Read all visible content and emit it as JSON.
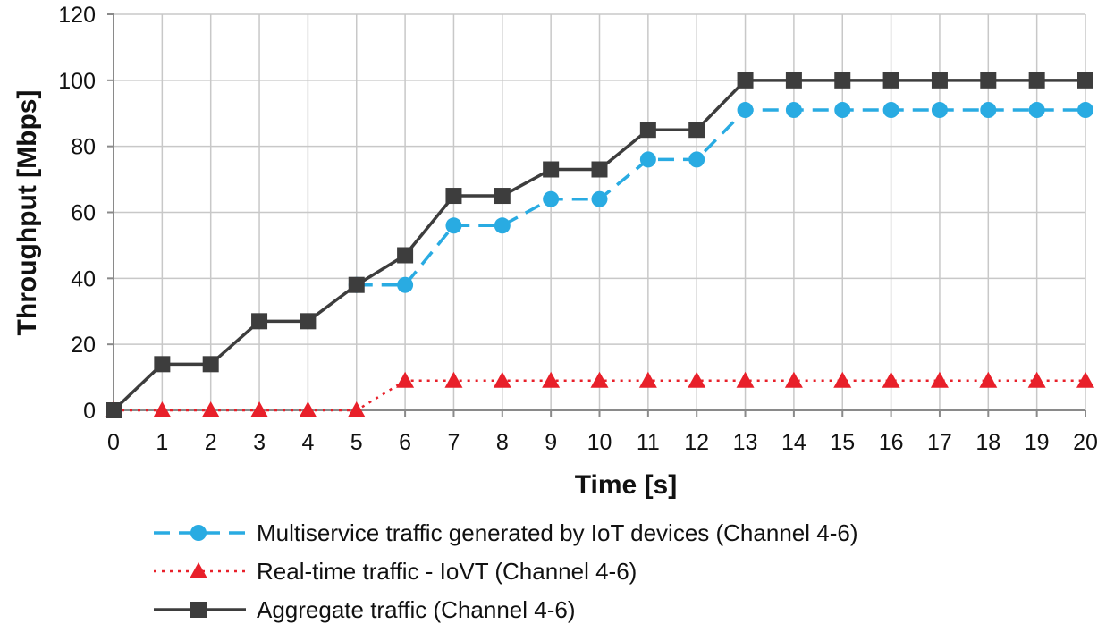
{
  "chart_data": {
    "type": "line",
    "title": "",
    "xlabel": "Time [s]",
    "ylabel": "Throughput [Mbps]",
    "x": [
      0,
      1,
      2,
      3,
      4,
      5,
      6,
      7,
      8,
      9,
      10,
      11,
      12,
      13,
      14,
      15,
      16,
      17,
      18,
      19,
      20
    ],
    "xlim": [
      0,
      20
    ],
    "ylim": [
      0,
      120
    ],
    "yticks": [
      0,
      20,
      40,
      60,
      80,
      100,
      120
    ],
    "grid": true,
    "legend_position": "bottom",
    "series": [
      {
        "name": "Multiservice traffic generated by IoT devices (Channel 4-6)",
        "color": "#29abe2",
        "line_style": "dashed",
        "marker": "circle",
        "x": [
          5,
          6,
          7,
          8,
          9,
          10,
          11,
          12,
          13,
          14,
          15,
          16,
          17,
          18,
          19,
          20
        ],
        "values": [
          38,
          38,
          56,
          56,
          64,
          64,
          76,
          76,
          91,
          91,
          91,
          91,
          91,
          91,
          91,
          91
        ]
      },
      {
        "name": "Real-time traffic - IoVT (Channel 4-6)",
        "color": "#e8202a",
        "line_style": "dotted",
        "marker": "triangle",
        "x": [
          0,
          1,
          2,
          3,
          4,
          5,
          6,
          7,
          8,
          9,
          10,
          11,
          12,
          13,
          14,
          15,
          16,
          17,
          18,
          19,
          20
        ],
        "values": [
          0,
          0,
          0,
          0,
          0,
          0,
          9,
          9,
          9,
          9,
          9,
          9,
          9,
          9,
          9,
          9,
          9,
          9,
          9,
          9,
          9
        ]
      },
      {
        "name": "Aggregate traffic (Channel 4-6)",
        "color": "#3d3d3d",
        "line_style": "solid",
        "marker": "square",
        "x": [
          0,
          1,
          2,
          3,
          4,
          5,
          6,
          7,
          8,
          9,
          10,
          11,
          12,
          13,
          14,
          15,
          16,
          17,
          18,
          19,
          20
        ],
        "values": [
          0,
          14,
          14,
          27,
          27,
          38,
          47,
          65,
          65,
          73,
          73,
          85,
          85,
          100,
          100,
          100,
          100,
          100,
          100,
          100,
          100
        ]
      }
    ]
  }
}
